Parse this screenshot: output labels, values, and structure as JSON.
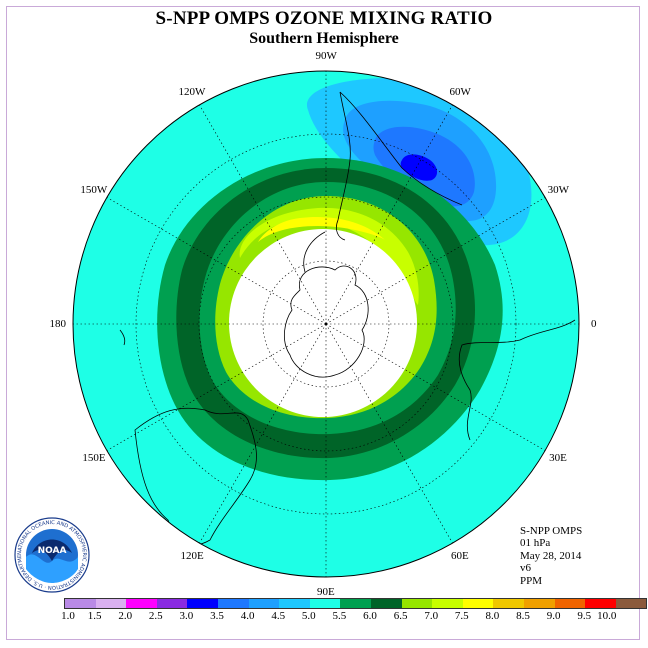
{
  "title": "S-NPP OMPS OZONE MIXING RATIO",
  "subtitle": "Southern Hemisphere",
  "longitude_labels": [
    {
      "text": "90W",
      "lon": -90
    },
    {
      "text": "60W",
      "lon": -60
    },
    {
      "text": "30W",
      "lon": -30
    },
    {
      "text": "0",
      "lon": 0
    },
    {
      "text": "30E",
      "lon": 30
    },
    {
      "text": "60E",
      "lon": 60
    },
    {
      "text": "90E",
      "lon": 90
    },
    {
      "text": "120E",
      "lon": 120
    },
    {
      "text": "150E",
      "lon": 150
    },
    {
      "text": "180",
      "lon": 180
    },
    {
      "text": "150W",
      "lon": -150
    },
    {
      "text": "120W",
      "lon": -120
    }
  ],
  "info": {
    "instrument": "S-NPP OMPS",
    "level": "01 hPa",
    "date": "May 28, 2014",
    "version": "v6",
    "units": "PPM"
  },
  "colorbar": {
    "ticks": [
      "1.0",
      "1.5",
      "2.0",
      "2.5",
      "3.0",
      "3.5",
      "4.0",
      "4.5",
      "5.0",
      "5.5",
      "6.0",
      "6.5",
      "7.0",
      "7.5",
      "8.0",
      "8.5",
      "9.0",
      "9.5",
      "10.0"
    ],
    "colors": [
      "#b98ae6",
      "#d9b0f0",
      "#ff00ff",
      "#8a2be2",
      "#0000ff",
      "#1e78ff",
      "#1ea0ff",
      "#1ec8ff",
      "#1effe6",
      "#00a050",
      "#006428",
      "#96e600",
      "#c8ff00",
      "#ffff00",
      "#f0c800",
      "#f0a000",
      "#f06400",
      "#ff0000",
      "#8b5a3c"
    ]
  },
  "logo_text": "NOAA",
  "logo_ring_text": "NATIONAL OCEANIC AND ATMOSPHERIC ADMINISTRATION · U.S. DEPARTMENT OF COMMERCE",
  "map_colors": {
    "background": "#1effe6",
    "band_dark_green": "#006428",
    "band_green": "#00a050",
    "band_lime": "#96e600",
    "band_yellow_green": "#c8ff00",
    "band_yellow": "#ffff00",
    "polar_white": "#ffffff",
    "blue_1": "#1ec8ff",
    "blue_2": "#1ea0ff",
    "blue_3": "#1e78ff",
    "blue_4": "#0000ff"
  }
}
